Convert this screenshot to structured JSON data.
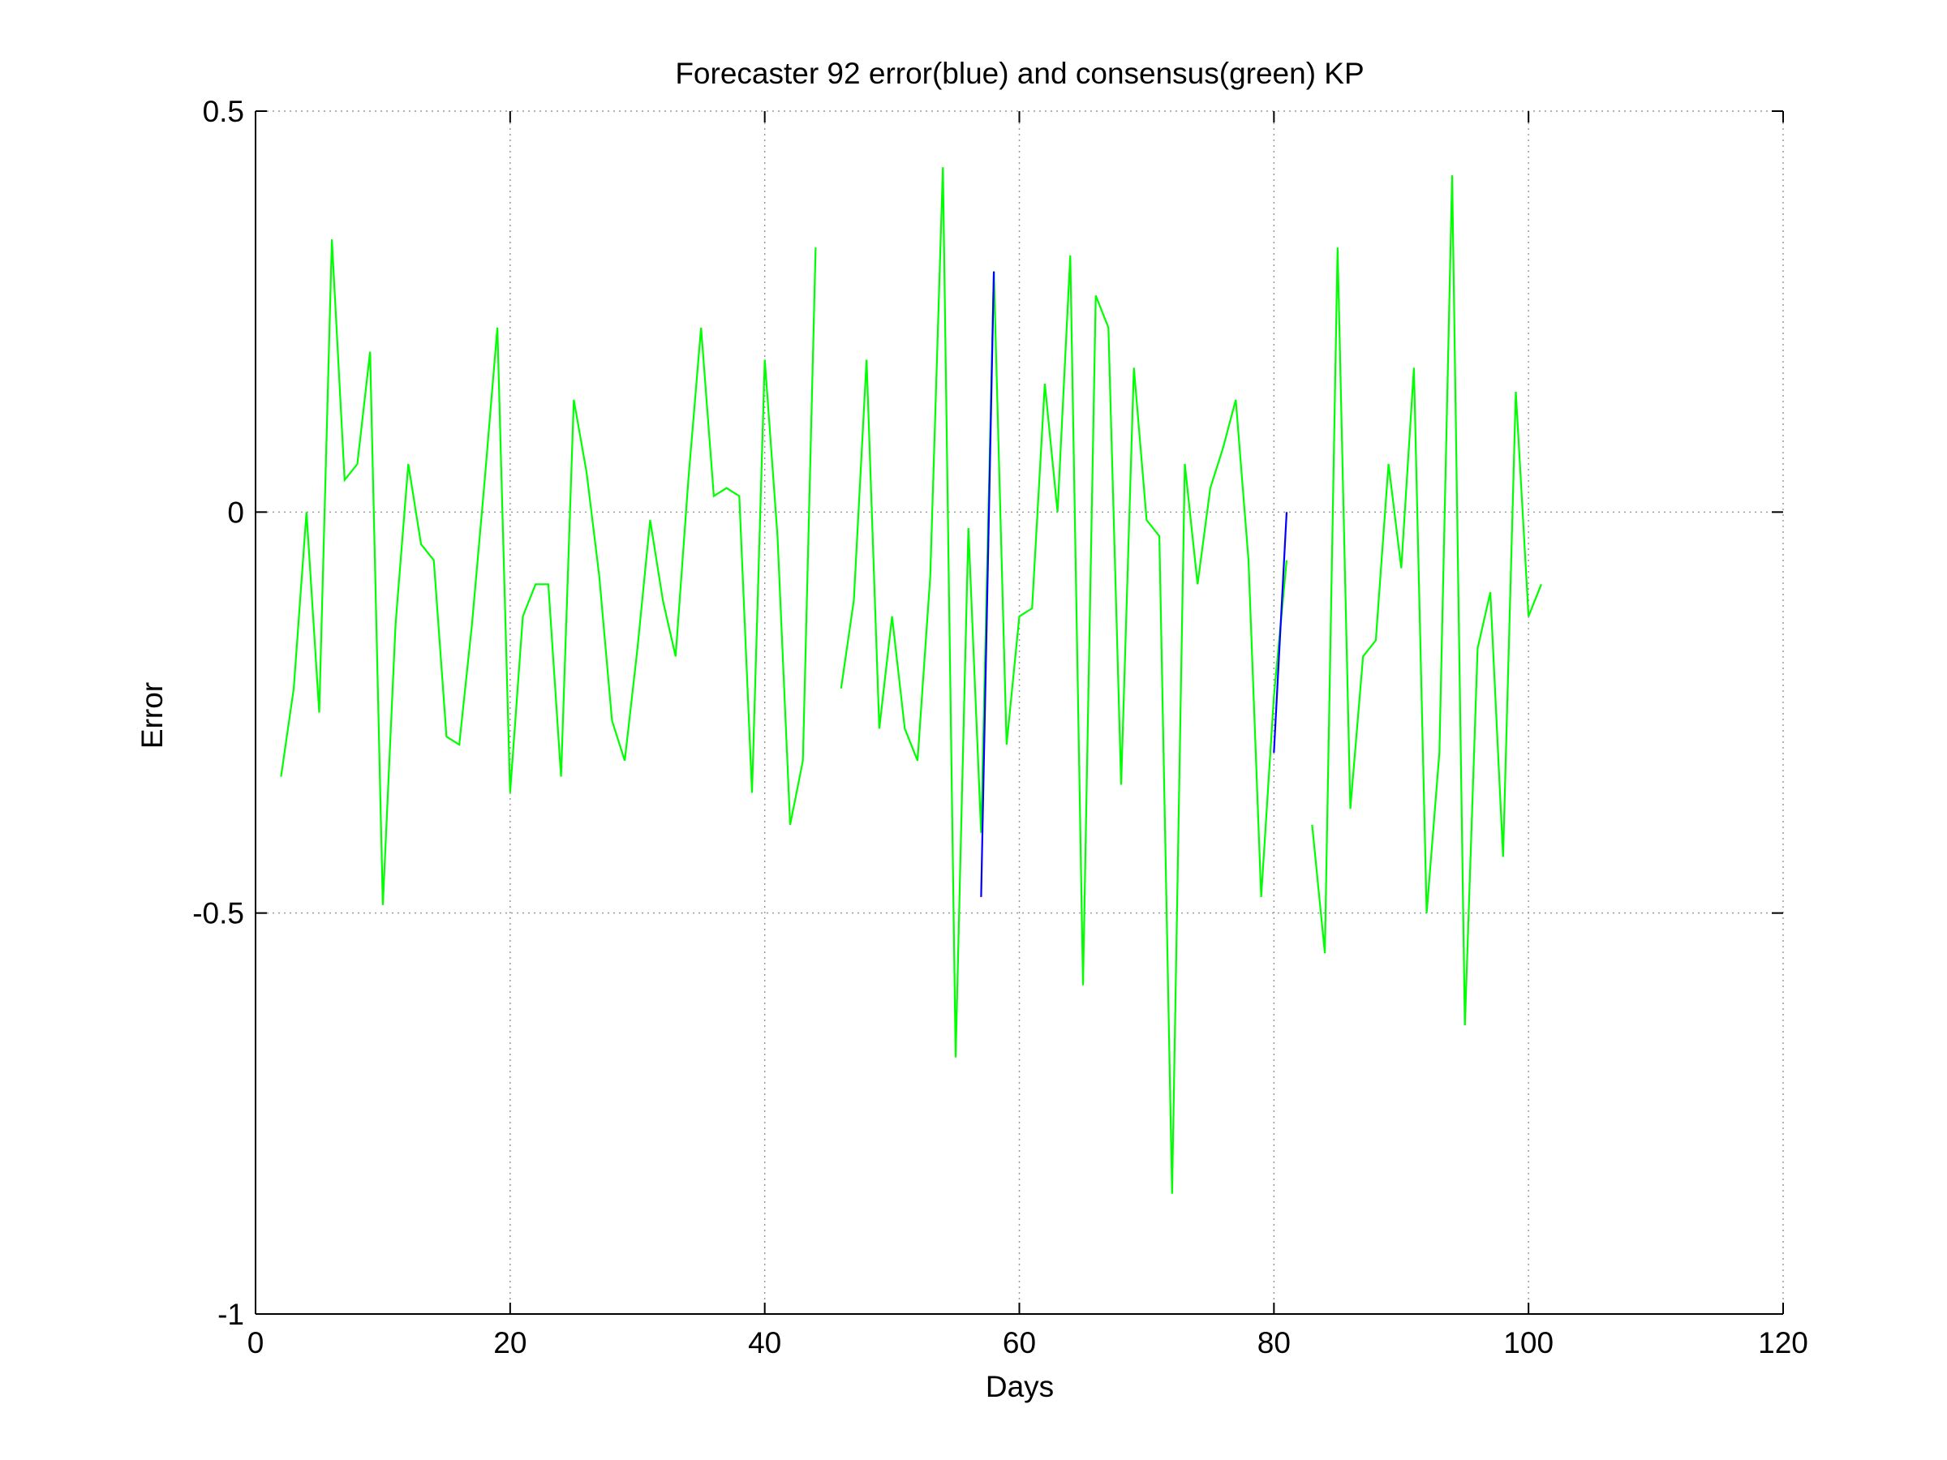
{
  "chart_data": {
    "type": "line",
    "title": "Forecaster 92 error(blue) and consensus(green)  KP",
    "xlabel": "Days",
    "ylabel": "Error",
    "xlim": [
      0,
      120
    ],
    "ylim": [
      -1,
      0.5
    ],
    "xticks": [
      0,
      20,
      40,
      60,
      80,
      100,
      120
    ],
    "xtick_labels": [
      "0",
      "20",
      "40",
      "60",
      "80",
      "100",
      "120"
    ],
    "yticks": [
      -1,
      -0.5,
      0,
      0.5
    ],
    "ytick_labels": [
      "-1",
      "-0.5",
      "0",
      "0.5"
    ],
    "grid": true,
    "series": [
      {
        "color": "#00ff00",
        "x": [
          2,
          3,
          4,
          5,
          6,
          7,
          8,
          9,
          10,
          11,
          12,
          13,
          14,
          15,
          16,
          17,
          18,
          19,
          20,
          21,
          22,
          23,
          24,
          25,
          26,
          27,
          28,
          29,
          30,
          31,
          32,
          33,
          34,
          35,
          36,
          37,
          38,
          39,
          40,
          41,
          42,
          43,
          44,
          null,
          46,
          47,
          48,
          49,
          50,
          51,
          52,
          53,
          54,
          55,
          56,
          57,
          58,
          59,
          60,
          61,
          62,
          63,
          64,
          65,
          66,
          67,
          68,
          69,
          70,
          71,
          72,
          73,
          74,
          75,
          76,
          77,
          78,
          79,
          80,
          81,
          null,
          83,
          84,
          85,
          86,
          87,
          88,
          89,
          90,
          91,
          92,
          93,
          94,
          95,
          96,
          97,
          98,
          99,
          100,
          101
        ],
        "y": [
          -0.33,
          -0.22,
          0.0,
          -0.25,
          0.34,
          0.04,
          0.06,
          0.2,
          -0.49,
          -0.14,
          0.06,
          -0.04,
          -0.06,
          -0.28,
          -0.29,
          -0.14,
          0.04,
          0.23,
          -0.35,
          -0.13,
          -0.09,
          -0.09,
          -0.33,
          0.14,
          0.05,
          -0.08,
          -0.26,
          -0.31,
          -0.17,
          -0.01,
          -0.11,
          -0.18,
          0.04,
          0.23,
          0.02,
          0.03,
          0.02,
          -0.35,
          0.19,
          -0.03,
          -0.39,
          -0.31,
          0.33,
          null,
          -0.22,
          -0.11,
          0.19,
          -0.27,
          -0.13,
          -0.27,
          -0.31,
          -0.08,
          0.43,
          -0.68,
          -0.02,
          -0.4,
          0.3,
          -0.29,
          -0.13,
          -0.12,
          0.16,
          0.0,
          0.32,
          -0.59,
          0.27,
          0.23,
          -0.34,
          0.18,
          -0.01,
          -0.03,
          -0.85,
          0.06,
          -0.09,
          0.03,
          0.08,
          0.14,
          -0.06,
          -0.48,
          -0.23,
          -0.06,
          null,
          -0.39,
          -0.55,
          0.33,
          -0.37,
          -0.18,
          -0.16,
          0.06,
          -0.07,
          0.18,
          -0.5,
          -0.3,
          0.42,
          -0.64,
          -0.17,
          -0.1,
          -0.43,
          0.15,
          -0.13,
          -0.09
        ]
      },
      {
        "color": "#0000ff",
        "segments": [
          {
            "x": [
              57,
              58
            ],
            "y": [
              -0.48,
              0.3
            ]
          },
          {
            "x": [
              80,
              81
            ],
            "y": [
              -0.3,
              0.0
            ]
          }
        ]
      }
    ]
  }
}
